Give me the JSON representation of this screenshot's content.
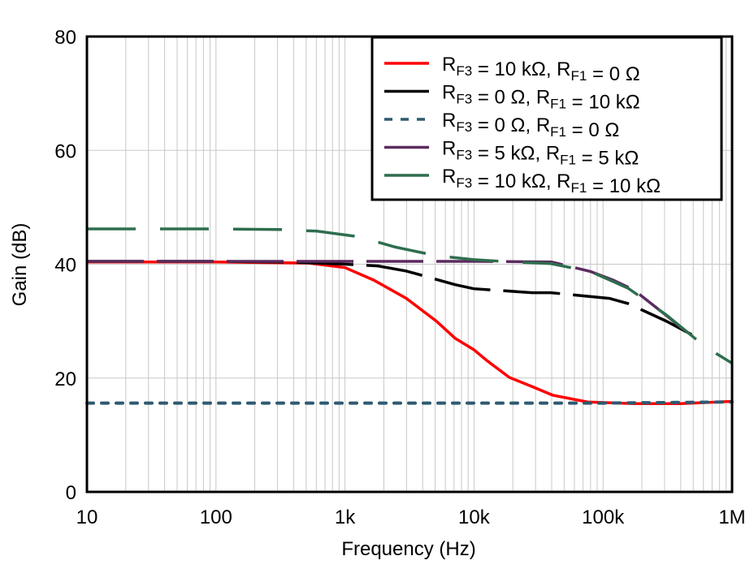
{
  "chart_data": {
    "type": "line",
    "title": "",
    "xlabel": "Frequency (Hz)",
    "ylabel": "Gain (dB)",
    "xscale": "log",
    "xlim": [
      10,
      1000000
    ],
    "ylim": [
      0,
      80
    ],
    "xticks": [
      10,
      100,
      1000,
      10000,
      100000,
      1000000
    ],
    "xtick_labels": [
      "10",
      "100",
      "1k",
      "10k",
      "100k",
      "1M"
    ],
    "yticks": [
      0,
      20,
      40,
      60,
      80
    ],
    "ytick_labels": [
      "0",
      "20",
      "40",
      "60",
      "80"
    ],
    "grid": true,
    "legend_position": "top-right",
    "series": [
      {
        "name": "R_F3 = 10 kΩ, R_F1 = 0 Ω",
        "label_main": "R",
        "sub1": "F3",
        "mid": " = 10 kΩ, R",
        "sub2": "F1",
        "tail": " = 0 Ω",
        "color": "#ff0000",
        "style": "solid",
        "x": [
          10,
          100,
          524,
          1000,
          1670,
          2990,
          5100,
          7130,
          9940,
          12700,
          18800,
          28200,
          40600,
          75700,
          173000,
          400000,
          1000000
        ],
        "y": [
          40.4,
          40.4,
          40.2,
          39.4,
          37.2,
          34.0,
          30.0,
          27.0,
          25.0,
          23.0,
          20.1,
          18.5,
          17.0,
          15.8,
          15.5,
          15.5,
          15.9
        ]
      },
      {
        "name": "R_F3 = 0 Ω, R_F1 = 10 kΩ",
        "label_main": "R",
        "sub1": "F3",
        "mid": " = 0 Ω, R",
        "sub2": "F1",
        "tail": " = 10 kΩ",
        "color": "#000000",
        "style": "dash",
        "x": [
          10,
          100,
          300,
          606,
          1000,
          1800,
          2990,
          7130,
          9940,
          28200,
          39400,
          112000,
          156000,
          309000,
          500000
        ],
        "y": [
          40.5,
          40.5,
          40.4,
          40.2,
          40.0,
          39.7,
          38.8,
          36.4,
          35.7,
          35.0,
          35.0,
          34.0,
          33.1,
          30.0,
          27.5
        ]
      },
      {
        "name": "R_F3 = 0 Ω, R_F1 = 0 Ω",
        "label_main": "R",
        "sub1": "F3",
        "mid": " = 0 Ω, R",
        "sub2": "F1",
        "tail": " = 0 Ω",
        "color": "#2e5a70",
        "style": "dot",
        "x": [
          10,
          1000,
          100000,
          1000000
        ],
        "y": [
          15.6,
          15.6,
          15.6,
          15.8
        ]
      },
      {
        "name": "R_F3 = 5 kΩ, R_F1 = 5 kΩ",
        "label_main": "R",
        "sub1": "F3",
        "mid": " = 5 kΩ, R",
        "sub2": "F1",
        "tail": " = 5 kΩ",
        "color": "#5c2a5e",
        "style": "dash",
        "x": [
          10,
          1000,
          10000,
          40000,
          80200,
          120000,
          173000,
          309000,
          478000
        ],
        "y": [
          40.5,
          40.5,
          40.5,
          40.4,
          38.7,
          37.2,
          35.5,
          31.0,
          27.5
        ]
      },
      {
        "name": "R_F3 = 10 kΩ, R_F1 = 10 kΩ",
        "label_main": "R",
        "sub1": "F3",
        "mid": " = 10 kΩ, R",
        "sub2": "F1",
        "tail": " = 10 kΩ",
        "color": "#2e6e4e",
        "style": "longdash",
        "x": [
          10,
          100,
          300,
          606,
          1290,
          2470,
          5100,
          9940,
          19600,
          39400,
          80200,
          156000,
          309000,
          620000,
          1000000
        ],
        "y": [
          46.2,
          46.2,
          46.1,
          45.8,
          44.8,
          43.0,
          41.5,
          40.8,
          40.4,
          40.1,
          38.7,
          35.8,
          31.1,
          25.5,
          22.6
        ]
      }
    ]
  }
}
